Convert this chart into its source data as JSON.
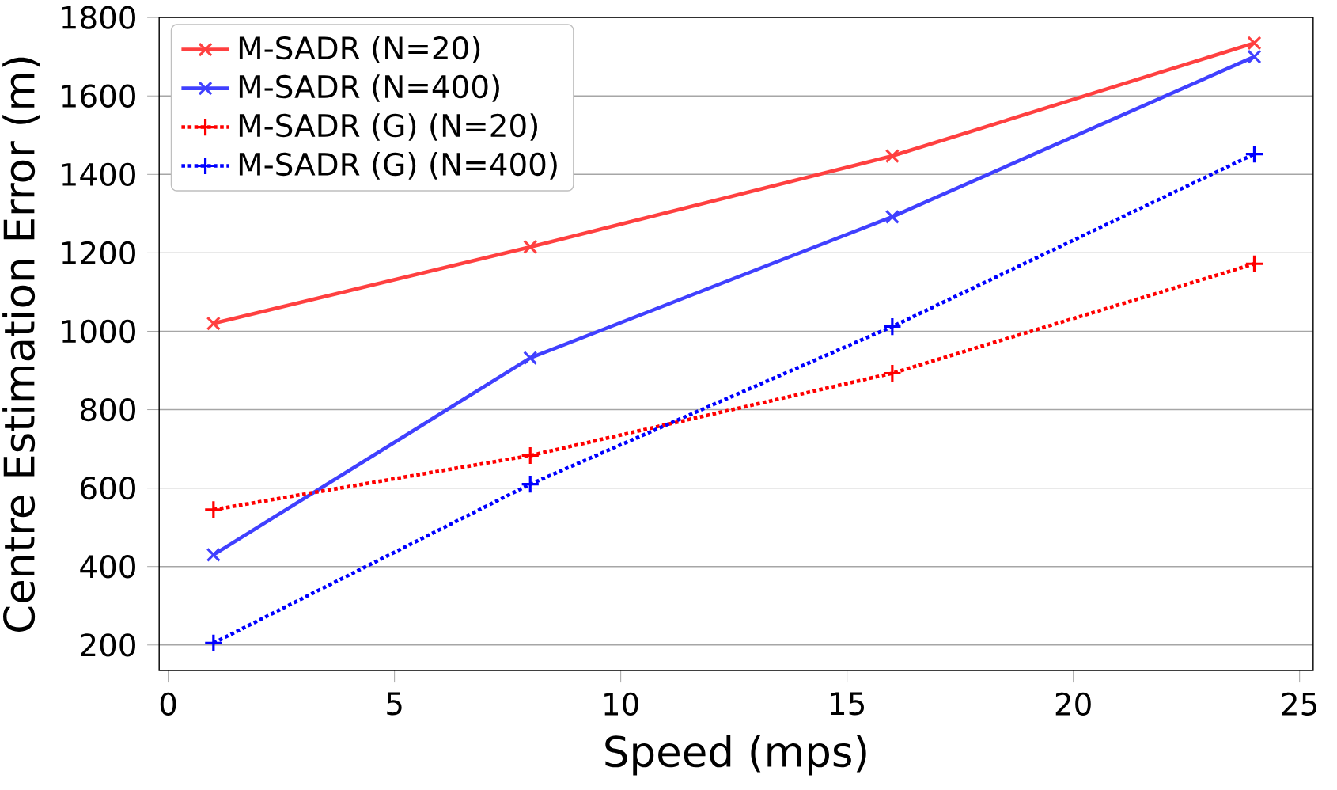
{
  "chart_data": {
    "type": "line",
    "xlabel": "Speed (mps)",
    "ylabel": "Centre Estimation Error (m)",
    "x": [
      1,
      8,
      16,
      24
    ],
    "series": [
      {
        "name": "M-SADR (N=20)",
        "color": "#ff4040",
        "values": [
          1020,
          1215,
          1447,
          1735
        ],
        "marker": "cross",
        "line_style": "solid"
      },
      {
        "name": "M-SADR (N=400)",
        "color": "#4040ff",
        "values": [
          430,
          932,
          1292,
          1700
        ],
        "marker": "cross",
        "line_style": "solid"
      },
      {
        "name": "M-SADR (G) (N=20)",
        "color": "#ff0000",
        "values": [
          545,
          683,
          893,
          1172
        ],
        "marker": "plus",
        "line_style": "dotted"
      },
      {
        "name": "M-SADR (G) (N=400)",
        "color": "#0000ff",
        "values": [
          205,
          610,
          1012,
          1452
        ],
        "marker": "plus",
        "line_style": "dotted"
      }
    ],
    "xlim": [
      -0.2,
      25.3
    ],
    "ylim": [
      135,
      1800
    ],
    "xticks": [
      0,
      5,
      10,
      15,
      20,
      25
    ],
    "yticks": [
      200,
      400,
      600,
      800,
      1000,
      1200,
      1400,
      1600,
      1800
    ],
    "grid": "y",
    "legend": "top left"
  }
}
